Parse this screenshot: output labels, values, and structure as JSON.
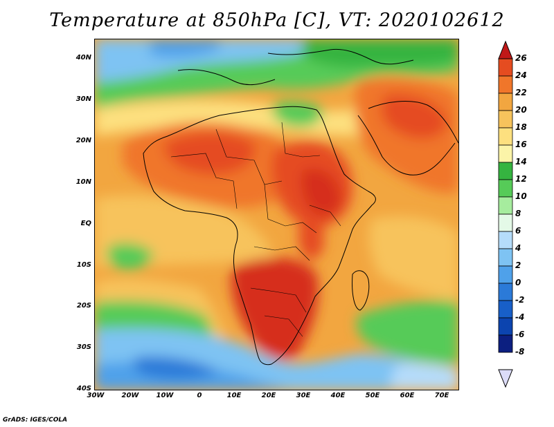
{
  "title": "Temperature at 850hPa [C], VT: 2020102612",
  "credit": "GrADS: IGES/COLA",
  "map": {
    "projection": "lat-lon",
    "lon_range": [
      -30,
      75
    ],
    "lat_range": [
      -40,
      45
    ],
    "lat_ticks": [
      "40N",
      "30N",
      "20N",
      "10N",
      "EQ",
      "10S",
      "20S",
      "30S",
      "40S"
    ],
    "lon_ticks": [
      "30W",
      "20W",
      "10W",
      "0",
      "10E",
      "20E",
      "30E",
      "40E",
      "50E",
      "60E",
      "70E"
    ]
  },
  "colorbar": {
    "labels": [
      "26",
      "24",
      "22",
      "20",
      "18",
      "16",
      "14",
      "12",
      "10",
      "8",
      "6",
      "4",
      "2",
      "0",
      "-2",
      "-4",
      "-6",
      "-8"
    ],
    "colors": [
      "#d62f1f",
      "#e54c20",
      "#f0762a",
      "#f2a640",
      "#f7c35c",
      "#fde07f",
      "#fbf4a8",
      "#35b440",
      "#56cb58",
      "#a6ec9e",
      "#e4f9e7",
      "#b5dcfa",
      "#7ec3f3",
      "#4fa1ea",
      "#2b7ad8",
      "#185fc8",
      "#0c44af",
      "#0c1f80"
    ],
    "over_color": "#c01818",
    "under_color": "#dcdcf8"
  }
}
